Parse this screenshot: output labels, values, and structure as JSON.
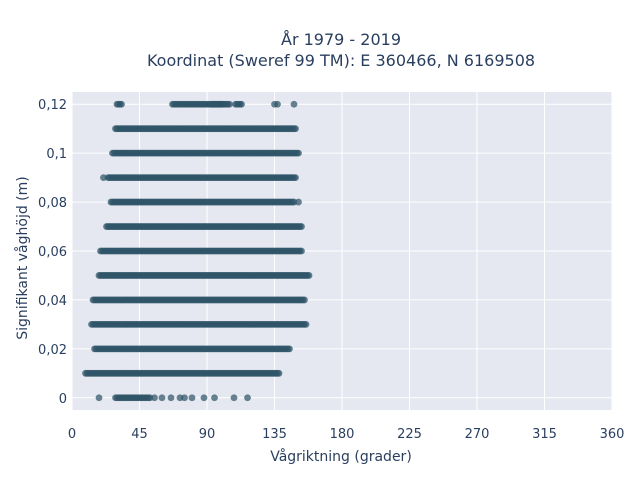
{
  "title": {
    "line1": "År 1979 - 2019",
    "line2": "Koordinat (Sweref 99 TM): E 360466, N 6169508"
  },
  "axes": {
    "xlabel": "Vågriktning (grader)",
    "ylabel": "Signifikant våghöjd (m)",
    "xticks": [
      "0",
      "45",
      "90",
      "135",
      "180",
      "225",
      "270",
      "315",
      "360"
    ],
    "yticks": [
      "0",
      "0,02",
      "0,04",
      "0,06",
      "0,08",
      "0,1",
      "0,12"
    ]
  },
  "colors": {
    "plot_background": "#e5e8f0",
    "grid": "#ffffff",
    "marker": "#2f5468",
    "text": "#2a3f5f"
  },
  "chart_data": {
    "type": "scatter",
    "title": "År 1979 - 2019 / Koordinat (Sweref 99 TM): E 360466, N 6169508",
    "xlabel": "Vågriktning (grader)",
    "ylabel": "Signifikant våghöjd (m)",
    "xlim": [
      0,
      360
    ],
    "ylim": [
      -0.005,
      0.125
    ],
    "grid": true,
    "series": [
      {
        "rows": [
          {
            "y": 0.12,
            "ranges": [
              [
                30,
                33
              ],
              [
                67,
                100
              ],
              [
                93,
                105
              ],
              [
                109,
                113
              ]
            ],
            "extra_x": [
              135,
              137,
              148
            ]
          },
          {
            "y": 0.11,
            "ranges": [
              [
                29,
                149
              ]
            ],
            "extra_x": []
          },
          {
            "y": 0.1,
            "ranges": [
              [
                27,
                151
              ]
            ],
            "extra_x": []
          },
          {
            "y": 0.09,
            "ranges": [
              [
                24,
                149
              ]
            ],
            "extra_x": [
              21
            ]
          },
          {
            "y": 0.08,
            "ranges": [
              [
                26,
                148
              ]
            ],
            "extra_x": [
              151
            ]
          },
          {
            "y": 0.07,
            "ranges": [
              [
                23,
                153
              ]
            ],
            "extra_x": []
          },
          {
            "y": 0.06,
            "ranges": [
              [
                19,
                153
              ]
            ],
            "extra_x": []
          },
          {
            "y": 0.05,
            "ranges": [
              [
                18,
                158
              ]
            ],
            "extra_x": []
          },
          {
            "y": 0.04,
            "ranges": [
              [
                14,
                155
              ]
            ],
            "extra_x": []
          },
          {
            "y": 0.03,
            "ranges": [
              [
                13,
                156
              ]
            ],
            "extra_x": []
          },
          {
            "y": 0.02,
            "ranges": [
              [
                15,
                145
              ]
            ],
            "extra_x": []
          },
          {
            "y": 0.01,
            "ranges": [
              [
                9,
                138
              ]
            ],
            "extra_x": []
          },
          {
            "y": 0.0,
            "ranges": [
              [
                29,
                52
              ]
            ],
            "extra_x": [
              18,
              55,
              60,
              66,
              72,
              75,
              80,
              88,
              95,
              108,
              117
            ]
          }
        ]
      }
    ]
  }
}
